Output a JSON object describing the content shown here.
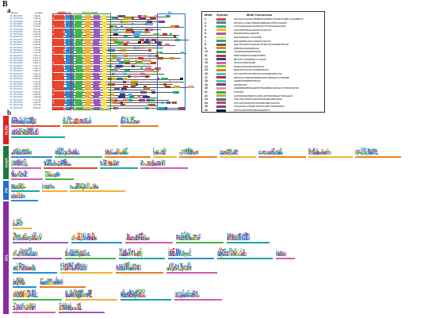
{
  "figure": {
    "panel_letter": "B",
    "subpanel_a": "a",
    "subpanel_b": "b"
  },
  "motif_plot": {
    "column_headers": [
      "Name",
      "p-value",
      "Motif Location"
    ],
    "domain_labels": [
      "KLRD",
      "Kelch repeat",
      "PH"
    ],
    "rows": [
      {
        "name": "XP_009127583",
        "len": "1.48e-91"
      },
      {
        "name": "XP_009127584",
        "len": "1.48e-91"
      },
      {
        "name": "XP_009103856",
        "len": "2.10e-88"
      },
      {
        "name": "XP_009103857",
        "len": "2.10e-88"
      },
      {
        "name": "XP_009150422",
        "len": "5.72e-87"
      },
      {
        "name": "XP_009150423",
        "len": "5.72e-87"
      },
      {
        "name": "XP_009120398",
        "len": "8.31e-86"
      },
      {
        "name": "XP_009137025",
        "len": "9.64e-85"
      },
      {
        "name": "XP_009112574",
        "len": "1.22e-84"
      },
      {
        "name": "XP_009112575",
        "len": "1.22e-84"
      },
      {
        "name": "XP_009138871",
        "len": "3.05e-83"
      },
      {
        "name": "XP_009148102",
        "len": "4.18e-82"
      },
      {
        "name": "XP_009105127",
        "len": "6.90e-81"
      },
      {
        "name": "XP_009131874",
        "len": "7.14e-80"
      },
      {
        "name": "XP_009131875",
        "len": "7.14e-80"
      },
      {
        "name": "XP_009116339",
        "len": "2.25e-79"
      },
      {
        "name": "XP_009141208",
        "len": "4.47e-78"
      },
      {
        "name": "XP_009124662",
        "len": "8.02e-77"
      },
      {
        "name": "XP_009146590",
        "len": "1.35e-75"
      },
      {
        "name": "XP_009108944",
        "len": "2.61e-74"
      },
      {
        "name": "XP_009129310",
        "len": "5.03e-73"
      },
      {
        "name": "XP_009134457",
        "len": "7.88e-72"
      },
      {
        "name": "XP_009101622",
        "len": "1.04e-70"
      },
      {
        "name": "XP_009122790",
        "len": "3.39e-69"
      },
      {
        "name": "XP_009144018",
        "len": "5.56e-68"
      },
      {
        "name": "XP_009118263",
        "len": "9.21e-67"
      },
      {
        "name": "XP_009136555",
        "len": "1.70e-65"
      },
      {
        "name": "XP_009110731",
        "len": "2.84e-64"
      },
      {
        "name": "XP_009127071",
        "len": "4.12e-63"
      },
      {
        "name": "XP_009149836",
        "len": "6.65e-62"
      },
      {
        "name": "XP_009102499",
        "len": "8.93e-61"
      },
      {
        "name": "XP_009133210",
        "len": "1.48e-59"
      },
      {
        "name": "XP_009115046",
        "len": "2.77e-58"
      },
      {
        "name": "XP_009140687",
        "len": "4.05e-57"
      },
      {
        "name": "XP_009121359",
        "len": "6.31e-56"
      },
      {
        "name": "XP_009147412",
        "len": "8.80e-55"
      }
    ]
  },
  "motif_table": {
    "headers": [
      "Motif",
      "Symbol",
      "Motif Consensus"
    ],
    "motifs": [
      {
        "num": "1.",
        "color": "#e8452c",
        "seq": "GELVAKLDLSKLVRGVIEENNSRSQGPIRDHLTTFLWNITSYNHKLLVAQSGRNIVFL"
      },
      {
        "num": "2.",
        "color": "#2a8bd6",
        "seq": "PHSSVKLTLTAHGVTFHNGRVVPNHRSARIVYPPILDYRQQPPA"
      },
      {
        "num": "3.",
        "color": "#43b649",
        "seq": "SLVFQLWSEAGAGPLYQLPPRVQSFVYYPQEGSMDQAVASTNQ"
      },
      {
        "num": "4.",
        "color": "#f2b233",
        "seq": "AFDAATEKIKEEAVLADPVEDIVSAQPYVVP"
      },
      {
        "num": "5.",
        "color": "#9b59b6",
        "seq": "DPSEWPGSEWKGLVGNGSEPK"
      },
      {
        "num": "6.",
        "color": "#f7e24c",
        "seq": "WSVGSSREKSRSLYTLDSPSRHG"
      },
      {
        "num": "7.",
        "color": "#1aa8a0",
        "seq": "NNVSSQNSHHLQAGLYLSRNSAFGTSRYVYY"
      },
      {
        "num": "8.",
        "color": "#8a4b2e",
        "seq": "ARRCTRSVSSDVAYSIGRAVRLTELRQYIDLLRELRRKMTEDGSPL"
      },
      {
        "num": "9.",
        "color": "#e67e22",
        "seq": "RGENGELRSGSKRARKQGSGG"
      },
      {
        "num": "10.",
        "color": "#16a085",
        "seq": "VSTSRRSGSMSNASEEPSPKVR"
      },
      {
        "num": "11.",
        "color": "#c0392b",
        "seq": "RPSRSVEPGRPSSAAPANALPSPPRK"
      },
      {
        "num": "12.",
        "color": "#2c3e90",
        "seq": "NNSTKEFYIVKKMIMMPGTLLPSSEEV"
      },
      {
        "num": "13.",
        "color": "#d35db0",
        "seq": "RYSPQSYPVNWGYGSKNK"
      },
      {
        "num": "14.",
        "color": "#7fc241",
        "seq": "RVSNKASSGRGSHNGTQQQNSSSSS"
      },
      {
        "num": "15.",
        "color": "#b7950b",
        "seq": "RNSRGFEETSRGSPLVQQSDNNLRPYGIS"
      },
      {
        "num": "16.",
        "color": "#5dade2",
        "seq": "SGLSSARLEEPTPSGTNDPLEVLIGTWQGDRGQENLGVVK"
      },
      {
        "num": "17.",
        "color": "#a93226",
        "seq": "DDEKSGVSYSIRRVQDIPRWRDGSPSPVTPDPEARFLGSSRPGRNH"
      },
      {
        "num": "18.",
        "color": "#48c9b0",
        "seq": "GSRQNHTSPPNPPPPTPPRSSK"
      },
      {
        "num": "19.",
        "color": "#6c3483",
        "seq": "LNSQDNTVIRP"
      },
      {
        "num": "20.",
        "color": "#f1948a",
        "seq": "LRRRENMRNQMEMSSRLNPPPYPPQQVNPNRVLSRYQGGYVYEVKEPLSNSYVN"
      },
      {
        "num": "21.",
        "color": "#27ae60",
        "seq": "ETDSDVEE"
      },
      {
        "num": "22.",
        "color": "#d4ac0d",
        "seq": "GLEDHGSKDGWTNPWWYTDLVRELLKDHTRQPAREGGDTTQVRLGRLKV"
      },
      {
        "num": "23.",
        "color": "#2471a3",
        "seq": "SPSQLVQDTTDDKSDSASPPGSPHSDLNNSSWEDLQGVDK"
      },
      {
        "num": "24.",
        "color": "#cb4335",
        "seq": "DTPLSAPSYWEGQETDAIVSKGSEMLAMGIPSAKLDIQ"
      },
      {
        "num": "25.",
        "color": "#7d3c98",
        "seq": "YDGSSAQSPSLSTRSGRCTPGSGVPGSPPTSSNSQDPQPASS"
      },
      {
        "num": "30.",
        "color": "#17202a",
        "seq": "QPSPVRSTDDDPSPEDSPRSSKGWKSNCTK"
      }
    ]
  },
  "logo_groups": [
    {
      "name": "KLRD",
      "color": "#e02020"
    },
    {
      "name": "Kelch",
      "color": "#1e7a3a"
    },
    {
      "name": "PH",
      "color": "#1f6fd1"
    },
    {
      "name": "SDL",
      "color": "#8a2aa0"
    }
  ]
}
